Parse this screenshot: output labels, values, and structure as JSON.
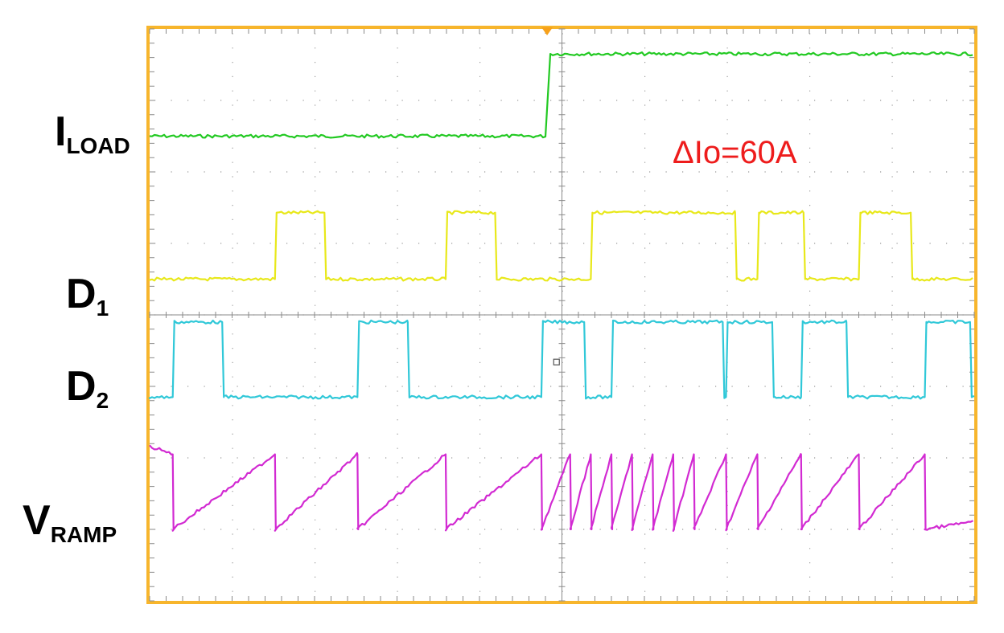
{
  "chart_data": {
    "type": "line",
    "title": "",
    "grid": true,
    "divisions": {
      "x": 10,
      "y": 8
    },
    "trigger_marker_color": "#f7a11a",
    "frame_color": "#f7b52c",
    "annotation": {
      "text": "ΔIo=60A",
      "color": "#ee1c1c"
    },
    "series": [
      {
        "name": "I",
        "name_sub": "LOAD",
        "color": "#22c922",
        "kind": "step",
        "level_low": 6.5,
        "level_high": 7.65,
        "step_at_div": 4.82
      },
      {
        "name": "D",
        "name_sub": "1",
        "color": "#e8e81a",
        "kind": "pulse",
        "level_low": 4.5,
        "level_high": 5.43,
        "pulses_div": [
          [
            1.52,
            2.12
          ],
          [
            3.59,
            4.19
          ],
          [
            5.35,
            7.1
          ],
          [
            7.37,
            7.93
          ],
          [
            8.6,
            9.23
          ]
        ]
      },
      {
        "name": "D",
        "name_sub": "2",
        "color": "#30c8d8",
        "kind": "pulse",
        "level_low": 2.85,
        "level_high": 3.9,
        "pulses_div": [
          [
            0.28,
            0.88
          ],
          [
            2.52,
            3.13
          ],
          [
            4.75,
            5.27
          ],
          [
            5.6,
            6.95
          ],
          [
            6.99,
            7.55
          ],
          [
            7.9,
            8.45
          ],
          [
            9.4,
            9.95
          ]
        ]
      },
      {
        "name": "V",
        "name_sub": "RAMP",
        "color": "#d22ad2",
        "kind": "sawtooth",
        "level_low": 1.0,
        "level_high": 2.05,
        "resets_div": [
          0.28,
          1.52,
          2.52,
          3.59,
          4.75,
          5.1,
          5.35,
          5.6,
          5.85,
          6.1,
          6.35,
          6.6,
          6.99,
          7.37,
          7.9,
          8.6,
          9.4
        ]
      }
    ]
  }
}
